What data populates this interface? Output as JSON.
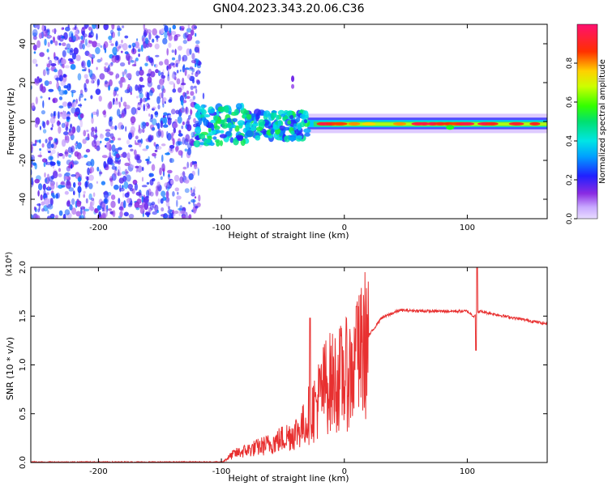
{
  "title": "GN04.2023.343.20.06.C36",
  "chart_data": [
    {
      "type": "heatmap",
      "name": "spectrogram",
      "xlabel": "Height of straight line (km)",
      "ylabel": "Frequency (Hz)",
      "xlim": [
        -255,
        165
      ],
      "ylim": [
        -50,
        50
      ],
      "xticks": [
        -200,
        -100,
        0,
        100
      ],
      "yticks": [
        -40,
        -20,
        0,
        20,
        40
      ],
      "colorbar": {
        "label": "Normalized spectral amplitude",
        "range": [
          0,
          1
        ],
        "ticks": [
          "0.0",
          "0.2",
          "0.4",
          "0.6",
          "0.8"
        ]
      },
      "regions": [
        {
          "x_range": [
            -255,
            -118
          ],
          "f_range": [
            -50,
            50
          ],
          "description": "broadband noise",
          "amplitude": [
            0.05,
            0.3
          ]
        },
        {
          "x_range": [
            -120,
            -30
          ],
          "f_range": [
            -12,
            8
          ],
          "description": "scattered band",
          "amplitude": [
            0.2,
            0.55
          ]
        },
        {
          "x_range": [
            -30,
            165
          ],
          "f_range": [
            -4,
            2
          ],
          "description": "narrow signal band",
          "center_hz": -1.5,
          "peak_amplitude": 0.95
        }
      ]
    },
    {
      "type": "line",
      "name": "snr",
      "xlabel": "Height of straight line (km)",
      "ylabel": "SNR (10 * v/v)",
      "y_multiplier": "(x10⁴)",
      "xlim": [
        -255,
        165
      ],
      "ylim": [
        0,
        2.0
      ],
      "xticks": [
        -200,
        -100,
        0,
        100
      ],
      "yticks": [
        "0.0",
        "0.5",
        "1.0",
        "1.5",
        "2.0"
      ],
      "color": "#e83030",
      "profile": [
        {
          "x": -255,
          "y": 0.0
        },
        {
          "x": -100,
          "y": 0.0
        },
        {
          "x": -90,
          "y": 0.1
        },
        {
          "x": -60,
          "y": 0.22
        },
        {
          "x": -40,
          "y": 0.35
        },
        {
          "x": -25,
          "y": 0.55
        },
        {
          "x": -15,
          "y": 0.8
        },
        {
          "x": -5,
          "y": 0.85
        },
        {
          "x": 8,
          "y": 0.95
        },
        {
          "x": 20,
          "y": 1.3
        },
        {
          "x": 30,
          "y": 1.48
        },
        {
          "x": 45,
          "y": 1.56
        },
        {
          "x": 70,
          "y": 1.55
        },
        {
          "x": 100,
          "y": 1.55
        },
        {
          "x": 105,
          "y": 1.5
        },
        {
          "x": 110,
          "y": 1.55
        },
        {
          "x": 130,
          "y": 1.5
        },
        {
          "x": 165,
          "y": 1.42
        }
      ],
      "spikes": [
        {
          "x": 108,
          "y": 2.0
        },
        {
          "x": 107,
          "y": 1.15
        },
        {
          "x": 10,
          "y": 1.6
        },
        {
          "x": -28,
          "y": 1.48
        }
      ]
    }
  ]
}
